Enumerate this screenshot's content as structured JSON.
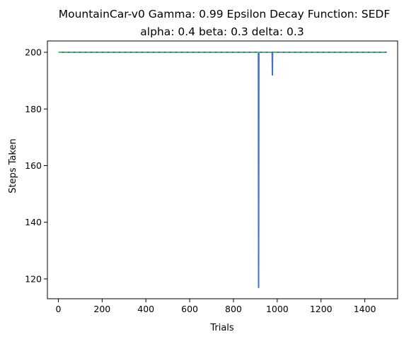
{
  "chart_data": {
    "type": "line",
    "title_line1": "MountainCar-v0 Gamma: 0.99 Epsilon Decay Function: SEDF",
    "title_line2": "alpha: 0.4  beta: 0.3  delta: 0.3",
    "xlabel": "Trials",
    "ylabel": "Steps Taken",
    "xlim": [
      -50,
      1550
    ],
    "ylim": [
      113,
      204
    ],
    "xticks": [
      0,
      200,
      400,
      600,
      800,
      1000,
      1200,
      1400
    ],
    "yticks": [
      120,
      140,
      160,
      180,
      200
    ],
    "grid": false,
    "legend": "none",
    "series": [
      {
        "color": "#4472c4",
        "points": [
          [
            0,
            200
          ],
          [
            914,
            200
          ],
          [
            915,
            117
          ],
          [
            916,
            200
          ],
          [
            977,
            200
          ],
          [
            978,
            192
          ],
          [
            979,
            200
          ],
          [
            1500,
            200
          ]
        ]
      },
      {
        "color": "#55bb66",
        "dashed": true,
        "points": [
          [
            0,
            200
          ],
          [
            1500,
            200
          ]
        ]
      }
    ]
  }
}
